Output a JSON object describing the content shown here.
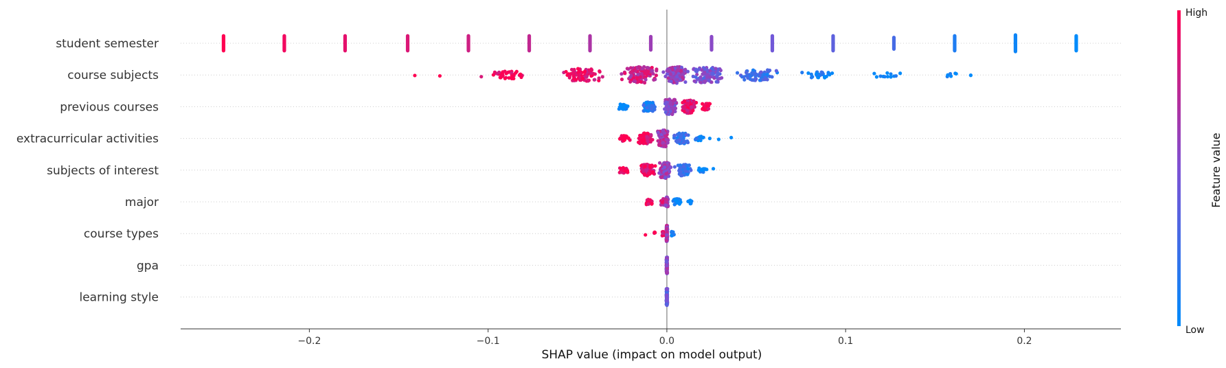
{
  "chart_data": {
    "type": "scatter",
    "subtype": "shap-beeswarm",
    "title": "",
    "xlabel": "SHAP value (impact on model output)",
    "ylabel": "",
    "xlim": [
      -0.272,
      0.254
    ],
    "x_ticks": [
      {
        "value": -0.2,
        "label": "−0.2"
      },
      {
        "value": -0.1,
        "label": "−0.1"
      },
      {
        "value": 0.0,
        "label": "0.0"
      },
      {
        "value": 0.1,
        "label": "0.1"
      },
      {
        "value": 0.2,
        "label": "0.2"
      }
    ],
    "zero_line": true,
    "grid": false,
    "colorbar": {
      "title": "Feature value",
      "high_label": "High",
      "low_label": "Low",
      "low_color": "#008bfb",
      "high_color": "#ff0052"
    },
    "features": [
      {
        "name": "student semester",
        "clusters": [
          {
            "x": -0.248,
            "f": 1.0,
            "spread": 0.0,
            "n": 7,
            "bar": true
          },
          {
            "x": -0.214,
            "f": 0.95,
            "spread": 0.0,
            "n": 7,
            "bar": true
          },
          {
            "x": -0.18,
            "f": 0.9,
            "spread": 0.0,
            "n": 7,
            "bar": true
          },
          {
            "x": -0.145,
            "f": 0.86,
            "spread": 0.0,
            "n": 7,
            "bar": true
          },
          {
            "x": -0.111,
            "f": 0.81,
            "spread": 0.0,
            "n": 7,
            "bar": true
          },
          {
            "x": -0.077,
            "f": 0.76,
            "spread": 0.0,
            "n": 7,
            "bar": true
          },
          {
            "x": -0.043,
            "f": 0.68,
            "spread": 0.0,
            "n": 7,
            "bar": true
          },
          {
            "x": -0.009,
            "f": 0.62,
            "spread": 0.0,
            "n": 6,
            "bar": true
          },
          {
            "x": 0.025,
            "f": 0.55,
            "spread": 0.0,
            "n": 6,
            "bar": true
          },
          {
            "x": 0.059,
            "f": 0.45,
            "spread": 0.0,
            "n": 7,
            "bar": true
          },
          {
            "x": 0.093,
            "f": 0.37,
            "spread": 0.0,
            "n": 7,
            "bar": true
          },
          {
            "x": 0.127,
            "f": 0.28,
            "spread": 0.0,
            "n": 5,
            "bar": true
          },
          {
            "x": 0.161,
            "f": 0.12,
            "spread": 0.0,
            "n": 7,
            "bar": true
          },
          {
            "x": 0.195,
            "f": 0.05,
            "spread": 0.0,
            "n": 8,
            "bar": true
          },
          {
            "x": 0.229,
            "f": 0.0,
            "spread": 0.0,
            "n": 7,
            "bar": true
          }
        ]
      },
      {
        "name": "course subjects",
        "clusters": [
          {
            "x": -0.141,
            "f": 1.0,
            "spread": 0.0,
            "n": 1
          },
          {
            "x": -0.127,
            "f": 1.0,
            "spread": 0.0,
            "n": 1
          },
          {
            "x": -0.09,
            "f": 0.98,
            "spread": 0.018,
            "n": 40
          },
          {
            "x": -0.048,
            "f": 0.93,
            "spread": 0.015,
            "n": 90
          },
          {
            "x": -0.015,
            "f": 0.8,
            "spread": 0.012,
            "n": 120
          },
          {
            "x": 0.005,
            "f": 0.6,
            "spread": 0.008,
            "n": 150
          },
          {
            "x": 0.022,
            "f": 0.45,
            "spread": 0.012,
            "n": 110
          },
          {
            "x": 0.05,
            "f": 0.25,
            "spread": 0.014,
            "n": 70
          },
          {
            "x": 0.085,
            "f": 0.08,
            "spread": 0.013,
            "n": 30
          },
          {
            "x": 0.126,
            "f": 0.0,
            "spread": 0.016,
            "n": 12
          },
          {
            "x": 0.158,
            "f": 0.0,
            "spread": 0.008,
            "n": 6
          },
          {
            "x": 0.17,
            "f": 0.0,
            "spread": 0.0,
            "n": 2
          }
        ]
      },
      {
        "name": "previous courses",
        "clusters": [
          {
            "x": -0.024,
            "f": 0.0,
            "spread": 0.004,
            "n": 25
          },
          {
            "x": -0.01,
            "f": 0.15,
            "spread": 0.005,
            "n": 60
          },
          {
            "x": 0.002,
            "f": 0.55,
            "spread": 0.004,
            "n": 110
          },
          {
            "x": 0.012,
            "f": 0.9,
            "spread": 0.005,
            "n": 90
          },
          {
            "x": 0.022,
            "f": 1.0,
            "spread": 0.003,
            "n": 35
          }
        ]
      },
      {
        "name": "extracurricular activities",
        "clusters": [
          {
            "x": -0.024,
            "f": 1.0,
            "spread": 0.004,
            "n": 25
          },
          {
            "x": -0.012,
            "f": 0.95,
            "spread": 0.005,
            "n": 70
          },
          {
            "x": -0.002,
            "f": 0.65,
            "spread": 0.004,
            "n": 120
          },
          {
            "x": 0.008,
            "f": 0.2,
            "spread": 0.005,
            "n": 70
          },
          {
            "x": 0.018,
            "f": 0.05,
            "spread": 0.004,
            "n": 15
          },
          {
            "x": 0.024,
            "f": 0.0,
            "spread": 0.0,
            "n": 1
          },
          {
            "x": 0.029,
            "f": 0.0,
            "spread": 0.0,
            "n": 1
          },
          {
            "x": 0.036,
            "f": 0.0,
            "spread": 0.0,
            "n": 1
          }
        ]
      },
      {
        "name": "subjects of interest",
        "clusters": [
          {
            "x": -0.024,
            "f": 1.0,
            "spread": 0.004,
            "n": 25
          },
          {
            "x": -0.011,
            "f": 0.92,
            "spread": 0.005,
            "n": 75
          },
          {
            "x": -0.001,
            "f": 0.6,
            "spread": 0.004,
            "n": 120
          },
          {
            "x": 0.009,
            "f": 0.2,
            "spread": 0.005,
            "n": 75
          },
          {
            "x": 0.02,
            "f": 0.05,
            "spread": 0.003,
            "n": 15
          },
          {
            "x": 0.026,
            "f": 0.0,
            "spread": 0.0,
            "n": 1
          }
        ]
      },
      {
        "name": "major",
        "clusters": [
          {
            "x": -0.01,
            "f": 1.0,
            "spread": 0.003,
            "n": 25
          },
          {
            "x": -0.002,
            "f": 0.8,
            "spread": 0.002,
            "n": 30
          },
          {
            "x": 0.0,
            "f": 0.6,
            "spread": 0.001,
            "n": 60
          },
          {
            "x": 0.006,
            "f": 0.05,
            "spread": 0.003,
            "n": 30
          },
          {
            "x": 0.013,
            "f": 0.0,
            "spread": 0.002,
            "n": 10
          }
        ]
      },
      {
        "name": "course types",
        "clusters": [
          {
            "x": -0.012,
            "f": 1.0,
            "spread": 0.0,
            "n": 1
          },
          {
            "x": -0.007,
            "f": 1.0,
            "spread": 0.0015,
            "n": 4
          },
          {
            "x": -0.002,
            "f": 0.9,
            "spread": 0.001,
            "n": 15
          },
          {
            "x": 0.0,
            "f": 0.6,
            "spread": 0.0005,
            "n": 120
          },
          {
            "x": 0.003,
            "f": 0.1,
            "spread": 0.001,
            "n": 15
          },
          {
            "x": 0.004,
            "f": 0.0,
            "spread": 0.0,
            "n": 1
          }
        ]
      },
      {
        "name": "gpa",
        "clusters": [
          {
            "x": 0.0,
            "f": 0.6,
            "spread": 0.0004,
            "n": 160
          }
        ]
      },
      {
        "name": "learning style",
        "clusters": [
          {
            "x": 0.0,
            "f": 0.4,
            "spread": 0.0004,
            "n": 160
          }
        ]
      }
    ]
  }
}
